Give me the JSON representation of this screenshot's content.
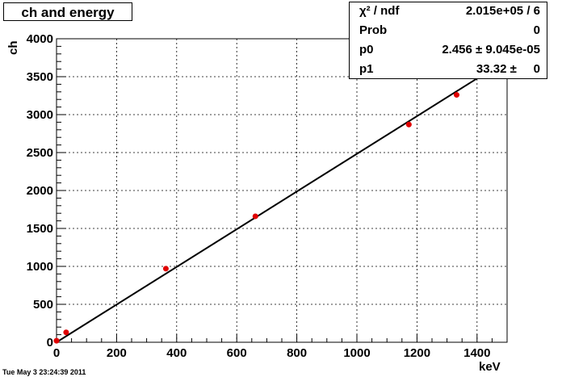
{
  "chart_data": {
    "type": "scatter",
    "title": "ch and energy",
    "xlabel": "keV",
    "ylabel": "ch",
    "xlim": [
      0,
      1500
    ],
    "ylim": [
      0,
      4000
    ],
    "x_ticks": [
      "0",
      "200",
      "400",
      "600",
      "800",
      "1000",
      "1200",
      "1400"
    ],
    "y_ticks": [
      "0",
      "500",
      "1000",
      "1500",
      "2000",
      "2500",
      "3000",
      "3500",
      "4000"
    ],
    "x_tick_values": [
      0,
      200,
      400,
      600,
      800,
      1000,
      1200,
      1400
    ],
    "y_tick_values": [
      0,
      500,
      1000,
      1500,
      2000,
      2500,
      3000,
      3500,
      4000
    ],
    "points": [
      {
        "x": 0,
        "y": 20
      },
      {
        "x": 32,
        "y": 130
      },
      {
        "x": 364,
        "y": 970
      },
      {
        "x": 662,
        "y": 1660
      },
      {
        "x": 1173,
        "y": 2870
      },
      {
        "x": 1332,
        "y": 3260
      }
    ],
    "fit_line": {
      "x": [
        0,
        1490
      ],
      "y": [
        0,
        3700
      ]
    },
    "marker_color": "#e00000",
    "line_color": "#000000",
    "grid": true
  },
  "stats": [
    {
      "label": "χ² / ndf",
      "value": "2.015e+05 / 6"
    },
    {
      "label": "Prob",
      "value": "0"
    },
    {
      "label": "p0",
      "value": "2.456 ± 9.045e-05"
    },
    {
      "label": "p1",
      "value": "33.32 ±     0"
    }
  ],
  "timestamp": "Tue May  3 23:24:39 2011"
}
